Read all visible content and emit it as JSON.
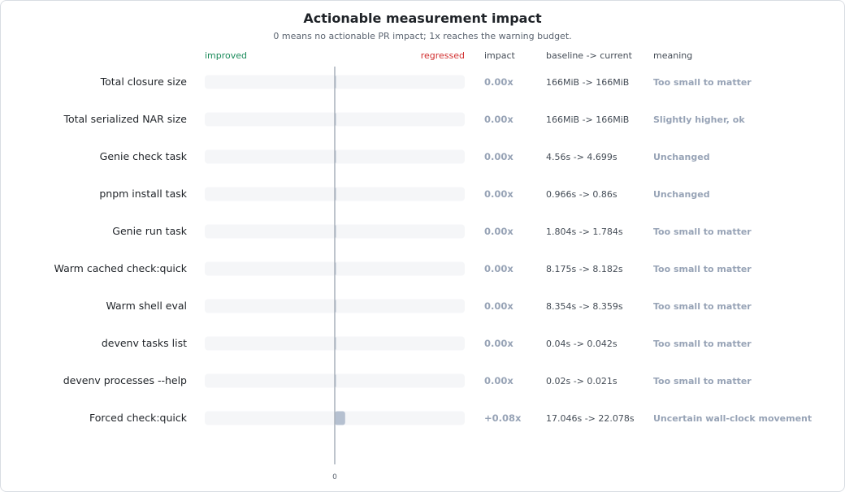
{
  "chart_data": {
    "type": "bar",
    "title": "Actionable measurement impact",
    "subtitle": "0 means no actionable PR impact; 1x reaches the warning budget.",
    "direction_labels": {
      "left": "improved",
      "right": "regressed"
    },
    "columns": {
      "impact": "impact",
      "baseline": "baseline -> current",
      "meaning": "meaning"
    },
    "xlim": [
      -1,
      1
    ],
    "x_ticks": [
      "0"
    ],
    "rows": [
      {
        "label": "Total closure size",
        "value": 0.0,
        "impact": "0.00x",
        "baseline": "166MiB -> 166MiB",
        "meaning": "Too small to matter"
      },
      {
        "label": "Total serialized NAR size",
        "value": 0.0,
        "impact": "0.00x",
        "baseline": "166MiB -> 166MiB",
        "meaning": "Slightly higher, ok"
      },
      {
        "label": "Genie check task",
        "value": 0.0,
        "impact": "0.00x",
        "baseline": "4.56s -> 4.699s",
        "meaning": "Unchanged"
      },
      {
        "label": "pnpm install task",
        "value": 0.0,
        "impact": "0.00x",
        "baseline": "0.966s -> 0.86s",
        "meaning": "Unchanged"
      },
      {
        "label": "Genie run task",
        "value": 0.0,
        "impact": "0.00x",
        "baseline": "1.804s -> 1.784s",
        "meaning": "Too small to matter"
      },
      {
        "label": "Warm cached check:quick",
        "value": 0.0,
        "impact": "0.00x",
        "baseline": "8.175s -> 8.182s",
        "meaning": "Too small to matter"
      },
      {
        "label": "Warm shell eval",
        "value": 0.0,
        "impact": "0.00x",
        "baseline": "8.354s -> 8.359s",
        "meaning": "Too small to matter"
      },
      {
        "label": "devenv tasks list",
        "value": 0.0,
        "impact": "0.00x",
        "baseline": "0.04s -> 0.042s",
        "meaning": "Too small to matter"
      },
      {
        "label": "devenv processes --help",
        "value": 0.0,
        "impact": "0.00x",
        "baseline": "0.02s -> 0.021s",
        "meaning": "Too small to matter"
      },
      {
        "label": "Forced check:quick",
        "value": 0.08,
        "impact": "+0.08x",
        "baseline": "17.046s -> 22.078s",
        "meaning": "Uncertain wall-clock movement"
      }
    ],
    "colors": {
      "track": "#f5f6f8",
      "bar": "#b5c0d0",
      "axis": "#a9b1bb",
      "improved": "#1a8a5a",
      "regressed": "#d12f2f"
    }
  }
}
